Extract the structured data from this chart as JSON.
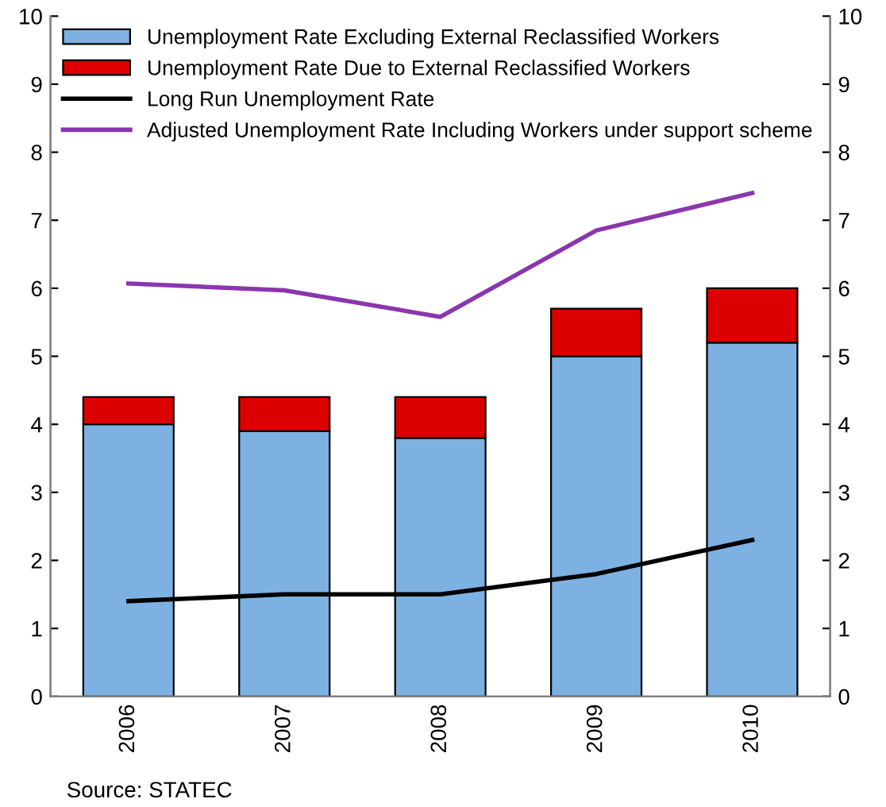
{
  "chart_data": {
    "type": "bar",
    "stacked": true,
    "categories": [
      "2006",
      "2007",
      "2008",
      "2009",
      "2010"
    ],
    "series": [
      {
        "name": "Unemployment Rate Excluding External Reclassified Workers",
        "color": "#7db1e2",
        "values": [
          4.0,
          3.9,
          3.8,
          5.0,
          5.2
        ]
      },
      {
        "name": "Unemployment Rate Due to External Reclassified Workers",
        "color": "#dd0000",
        "values": [
          0.4,
          0.5,
          0.6,
          0.7,
          0.8
        ]
      },
      {
        "name": "Long Run Unemployment Rate",
        "color": "#000000",
        "type": "line",
        "values": [
          1.4,
          1.5,
          1.5,
          1.8,
          2.3
        ]
      },
      {
        "name": "Adjusted Unemployment Rate Including Workers under support scheme",
        "color": "#8a36ad",
        "type": "line",
        "values": [
          6.07,
          5.97,
          5.58,
          6.85,
          7.4
        ]
      }
    ],
    "ylim": [
      0,
      10
    ],
    "yticks": [
      0,
      1,
      2,
      3,
      4,
      5,
      6,
      7,
      8,
      9,
      10
    ],
    "y2lim": [
      0,
      10
    ],
    "y2ticks": [
      0,
      1,
      2,
      3,
      4,
      5,
      6,
      7,
      8,
      9,
      10
    ],
    "grid": false,
    "legend": "top left",
    "marker": "none",
    "annotations": [
      "Source: STATEC"
    ]
  }
}
